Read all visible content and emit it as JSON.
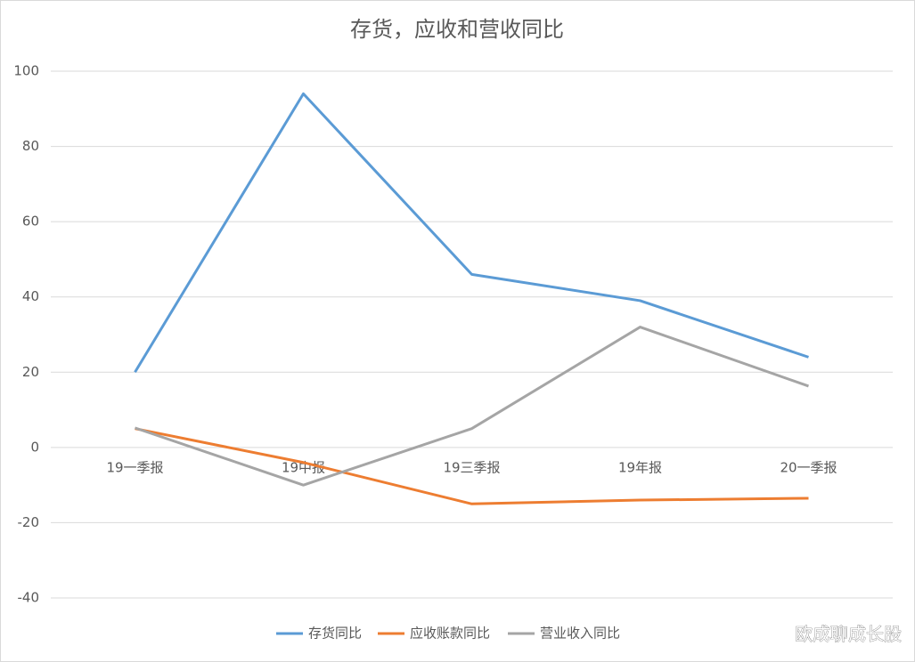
{
  "chart_data": {
    "type": "line",
    "title": "存货，应收和营收同比",
    "categories": [
      "19一季报",
      "19中报",
      "19三季报",
      "19年报",
      "20一季报"
    ],
    "series": [
      {
        "name": "存货同比",
        "color": "#5b9bd5",
        "values": [
          20,
          94,
          46,
          39,
          24
        ]
      },
      {
        "name": "应收账款同比",
        "color": "#ed7d31",
        "values": [
          5,
          -4,
          -15,
          -14,
          -13.5
        ]
      },
      {
        "name": "营业收入同比",
        "color": "#a5a5a5",
        "values": [
          5.2,
          -10,
          5,
          32,
          16.3
        ]
      }
    ],
    "ylim": [
      -40,
      100
    ],
    "yticks": [
      -40,
      -20,
      0,
      20,
      40,
      60,
      80,
      100
    ],
    "grid": true,
    "legend": "bottom"
  },
  "watermark": "欧成聊成长股"
}
